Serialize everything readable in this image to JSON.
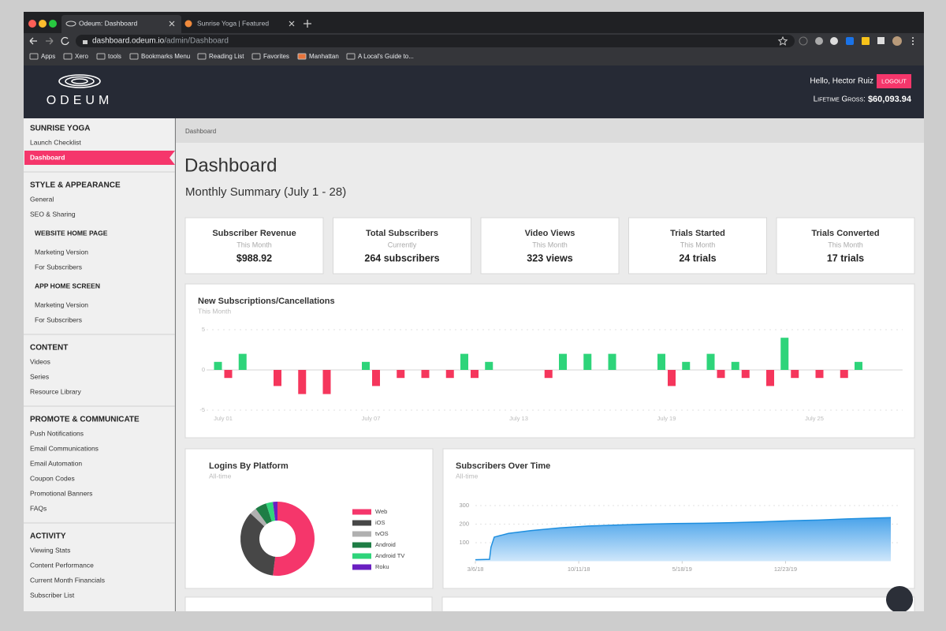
{
  "browser": {
    "tabs": [
      "Odeum: Dashboard",
      "Sunrise Yoga | Featured"
    ],
    "url_host": "dashboard.odeum.io",
    "url_path": "/admin/Dashboard",
    "bookmarks": [
      "Apps",
      "Xero",
      "tools",
      "Bookmarks Menu",
      "Reading List",
      "Favorites",
      "Manhattan",
      "A Local's Guide to..."
    ]
  },
  "header": {
    "logo": "ODEUM",
    "greeting": "Hello, Hector Ruiz",
    "logout": "LOGOUT",
    "gross_label": "Lifetime Gross:",
    "gross_value": "$60,093.94"
  },
  "sidebar": [
    {
      "title": "SUNRISE YOGA",
      "items": [
        "Launch Checklist",
        "Dashboard"
      ]
    },
    {
      "title": "STYLE & APPEARANCE",
      "items": [
        "General",
        "SEO & Sharing"
      ],
      "groups": [
        {
          "title": "WEBSITE HOME PAGE",
          "items": [
            "Marketing Version",
            "For Subscribers"
          ]
        },
        {
          "title": "APP HOME SCREEN",
          "items": [
            "Marketing Version",
            "For Subscribers"
          ]
        }
      ]
    },
    {
      "title": "CONTENT",
      "items": [
        "Videos",
        "Series",
        "Resource Library"
      ]
    },
    {
      "title": "PROMOTE & COMMUNICATE",
      "items": [
        "Push Notifications",
        "Email Communications",
        "Email Automation",
        "Coupon Codes",
        "Promotional Banners",
        "FAQs"
      ]
    },
    {
      "title": "ACTIVITY",
      "items": [
        "Viewing Stats",
        "Content Performance",
        "Current Month Financials",
        "Subscriber List"
      ]
    }
  ],
  "breadcrumb": "Dashboard",
  "title": "Dashboard",
  "subtitle": "Monthly Summary (July 1 - 28)",
  "stats": [
    {
      "label": "Subscriber Revenue",
      "period": "This Month",
      "value": "$988.92"
    },
    {
      "label": "Total Subscribers",
      "period": "Currently",
      "value": "264 subscribers"
    },
    {
      "label": "Video Views",
      "period": "This Month",
      "value": "323 views"
    },
    {
      "label": "Trials Started",
      "period": "This Month",
      "value": "24 trials"
    },
    {
      "label": "Trials Converted",
      "period": "This Month",
      "value": "17 trials"
    }
  ],
  "chart_data": [
    {
      "type": "bar",
      "title": "New Subscriptions/Cancellations",
      "subtitle": "This Month",
      "categories": [
        "July 01",
        null,
        null,
        null,
        null,
        null,
        "July 07",
        null,
        null,
        null,
        null,
        null,
        "July 13",
        null,
        null,
        null,
        null,
        null,
        "July 19",
        null,
        null,
        null,
        null,
        null,
        "July 25",
        null,
        null,
        null
      ],
      "series": [
        {
          "color": "#2ed47a",
          "values": [
            1,
            2,
            0,
            0,
            0,
            0,
            1,
            0,
            0,
            0,
            2,
            1,
            0,
            0,
            2,
            2,
            2,
            0,
            2,
            1,
            2,
            1,
            0,
            4,
            0,
            0,
            1,
            0
          ]
        },
        {
          "color": "#f5365c",
          "values": [
            -1,
            0,
            -2,
            -3,
            -3,
            0,
            -2,
            -1,
            -1,
            -1,
            -1,
            0,
            0,
            -1,
            0,
            0,
            0,
            0,
            -2,
            0,
            -1,
            -1,
            -2,
            -1,
            -1,
            -1,
            0,
            0
          ]
        }
      ],
      "ylim": [
        -5,
        5
      ],
      "yticks": [
        -5,
        0,
        5
      ],
      "grid": true
    },
    {
      "type": "pie",
      "title": "Logins By Platform",
      "subtitle": "All-time",
      "categories": [
        "Web",
        "iOS",
        "tvOS",
        "Android",
        "Android TV",
        "Roku"
      ],
      "values": [
        52,
        35,
        3,
        5,
        3,
        2
      ],
      "colors": [
        "#f5366b",
        "#474747",
        "#b0b0b0",
        "#1e7d45",
        "#2ed47a",
        "#6a1fc1"
      ],
      "donut": true
    },
    {
      "type": "area",
      "title": "Subscribers Over Time",
      "subtitle": "All-time",
      "x": [
        "3/6/18",
        "4/5/18",
        "4/8/18",
        "4/15/18",
        "5/15/18",
        "7/1/18",
        "9/1/18",
        "11/1/18",
        "1/1/19",
        "3/1/19",
        "5/1/19",
        "7/1/19",
        "9/1/19",
        "11/1/19",
        "1/1/20",
        "3/1/20",
        "5/1/20",
        "7/1/20",
        "8/2/20"
      ],
      "series": [
        {
          "color": "#1f8fdf",
          "values": [
            8,
            10,
            75,
            130,
            150,
            165,
            180,
            190,
            195,
            200,
            203,
            205,
            208,
            212,
            218,
            222,
            228,
            233,
            235
          ]
        }
      ],
      "xlim": [
        "3/6/18",
        "8/2/20"
      ],
      "xticks": [
        "3/6/18",
        "10/11/18",
        "5/18/19",
        "12/23/19"
      ],
      "ylim": [
        0,
        300
      ],
      "yticks": [
        100,
        200,
        300
      ],
      "grid": true
    }
  ]
}
